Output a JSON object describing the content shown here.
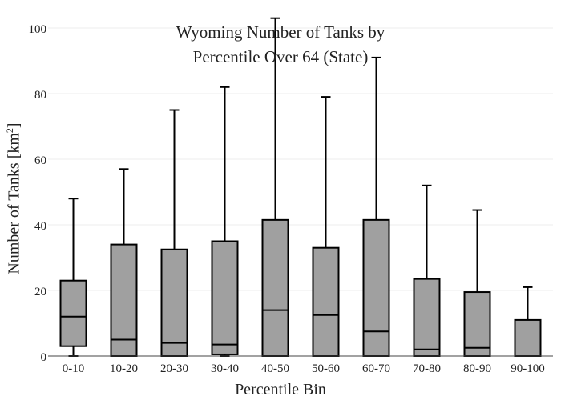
{
  "chart_data": {
    "type": "box",
    "title_lines": [
      "Wyoming Number of Tanks by",
      "Percentile Over 64 (State)"
    ],
    "xlabel": "Percentile Bin",
    "ylabel_main": "Number of Tanks",
    "ylabel_unit_open": "[km",
    "ylabel_unit_sup": "2",
    "ylabel_unit_close": "]",
    "ylim": [
      0,
      100
    ],
    "yticks": [
      0,
      20,
      40,
      60,
      80,
      100
    ],
    "grid": true,
    "box_color": "#a0a0a0",
    "line_color": "#000000",
    "categories": [
      "0-10",
      "10-20",
      "20-30",
      "30-40",
      "40-50",
      "50-60",
      "60-70",
      "70-80",
      "80-90",
      "90-100"
    ],
    "boxes": [
      {
        "min": 0,
        "q1": 3,
        "median": 12,
        "q3": 23,
        "max": 48
      },
      {
        "min": 0,
        "q1": 0,
        "median": 5,
        "q3": 34,
        "max": 57
      },
      {
        "min": 0,
        "q1": 0,
        "median": 4,
        "q3": 32.5,
        "max": 75
      },
      {
        "min": 0,
        "q1": 0.5,
        "median": 3.5,
        "q3": 35,
        "max": 82
      },
      {
        "min": 0,
        "q1": 0,
        "median": 14,
        "q3": 41.5,
        "max": 103
      },
      {
        "min": 0,
        "q1": 0,
        "median": 12.5,
        "q3": 33,
        "max": 79
      },
      {
        "min": 0,
        "q1": 0,
        "median": 7.5,
        "q3": 41.5,
        "max": 91
      },
      {
        "min": 0,
        "q1": 0,
        "median": 2,
        "q3": 23.5,
        "max": 52
      },
      {
        "min": 0,
        "q1": 0,
        "median": 2.5,
        "q3": 19.5,
        "max": 44.5
      },
      {
        "min": 0,
        "q1": 0,
        "median": 0,
        "q3": 11,
        "max": 21
      }
    ]
  }
}
